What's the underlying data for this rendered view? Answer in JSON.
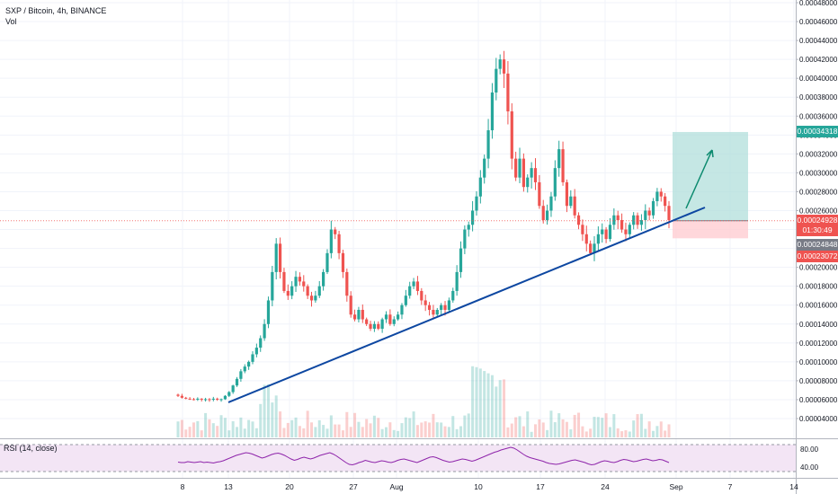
{
  "header": {
    "symbol_line": "SXP / Bitcoin, 4h, BINANCE",
    "volume_label": "Vol"
  },
  "rsi": {
    "label": "RSI (14, close)",
    "axis_labels": [
      "80.00",
      "40.00"
    ],
    "values": [
      51,
      50,
      50,
      52,
      51,
      50,
      51,
      52,
      50,
      51,
      50,
      49,
      51,
      52,
      54,
      57,
      60,
      63,
      66,
      68,
      70,
      72,
      71,
      69,
      66,
      63,
      60,
      62,
      65,
      68,
      70,
      71,
      69,
      66,
      62,
      58,
      55,
      57,
      60,
      62,
      60,
      58,
      60,
      63,
      66,
      68,
      70,
      72,
      69,
      65,
      60,
      55,
      50,
      46,
      45,
      47,
      50,
      52,
      55,
      53,
      51,
      50,
      52,
      54,
      53,
      51,
      50,
      52,
      55,
      57,
      58,
      56,
      54,
      52,
      50,
      53,
      56,
      59,
      62,
      63,
      61,
      58,
      55,
      53,
      51,
      52,
      54,
      56,
      58,
      57,
      55,
      53,
      55,
      58,
      61,
      64,
      67,
      70,
      73,
      75,
      78,
      80,
      82,
      84,
      82,
      78,
      73,
      68,
      64,
      61,
      59,
      57,
      55,
      53,
      50,
      48,
      47,
      46,
      47,
      49,
      51,
      53,
      55,
      56,
      54,
      52,
      50,
      47,
      45,
      46,
      49,
      52,
      54,
      53,
      51,
      50,
      52,
      55,
      57,
      56,
      54,
      52,
      53,
      55,
      57,
      58,
      56,
      54,
      55,
      57,
      56,
      53,
      50
    ]
  },
  "price_axis": {
    "ticks": [
      "0.00048000",
      "0.00046000",
      "0.00044000",
      "0.00042000",
      "0.00040000",
      "0.00038000",
      "0.00036000",
      "0.00034000",
      "0.00032000",
      "0.00030000",
      "0.00028000",
      "0.00026000",
      "0.00024000",
      "0.00022000",
      "0.00020000",
      "0.00018000",
      "0.00016000",
      "0.00014000",
      "0.00012000",
      "0.00010000",
      "0.00008000",
      "0.00006000",
      "0.00004000"
    ],
    "tags": [
      {
        "text": "0.00034318",
        "value": 0.00034318,
        "color": "#26a69a"
      },
      {
        "text": "0.00024928",
        "value": 0.00024928,
        "color": "#ef5350"
      },
      {
        "text": "01:30:49",
        "value": 0.000239,
        "color": "#ef5350"
      },
      {
        "text": "0.00024848",
        "value": 0.0002242,
        "color": "#787b86"
      },
      {
        "text": "0.00023072",
        "value": 0.000212,
        "color": "#ef5350"
      }
    ]
  },
  "time_axis": {
    "labels": [
      "8",
      "13",
      "20",
      "27",
      "Aug",
      "10",
      "17",
      "24",
      "Sep",
      "7",
      "14"
    ]
  },
  "chart_data": {
    "type": "candlestick",
    "title": "SXP / Bitcoin, 4h, BINANCE",
    "ylim": [
      3e-05,
      0.00049
    ],
    "x_labels": [
      "8",
      "13",
      "20",
      "27",
      "Aug",
      "10",
      "17",
      "24",
      "Sep",
      "7",
      "14"
    ],
    "close_series": [
      6.4e-05,
      6.2e-05,
      6.1e-05,
      6.05e-05,
      6e-05,
      6.1e-05,
      6e-05,
      6.05e-05,
      6e-05,
      6.1e-05,
      6e-05,
      6.05e-05,
      6.4e-05,
      6.8e-05,
      7.5e-05,
      8.2e-05,
      9e-05,
      9.5e-05,
      0.0001,
      0.000108,
      0.000115,
      0.000125,
      0.00014,
      0.000165,
      0.000195,
      0.000225,
      0.000195,
      0.000175,
      0.00017,
      0.00018,
      0.00019,
      0.000185,
      0.00018,
      0.00017,
      0.000165,
      0.00017,
      0.00018,
      0.000195,
      0.000215,
      0.00024,
      0.000235,
      0.000215,
      0.000195,
      0.00017,
      0.00015,
      0.000145,
      0.000155,
      0.000145,
      0.00014,
      0.000135,
      0.00014,
      0.000135,
      0.000145,
      0.00015,
      0.00014,
      0.000145,
      0.00015,
      0.00016,
      0.00017,
      0.00018,
      0.000185,
      0.000175,
      0.000165,
      0.00016,
      0.000155,
      0.00015,
      0.000155,
      0.00016,
      0.000155,
      0.000165,
      0.000175,
      0.000195,
      0.00022,
      0.00024,
      0.000245,
      0.00026,
      0.000275,
      0.000295,
      0.000315,
      0.000345,
      0.000385,
      0.00041,
      0.00042,
      0.000405,
      0.000365,
      0.000315,
      0.000295,
      0.000315,
      0.000285,
      0.000295,
      0.000305,
      0.00029,
      0.000265,
      0.00025,
      0.00026,
      0.000275,
      0.000305,
      0.000325,
      0.00029,
      0.000265,
      0.000275,
      0.000255,
      0.000245,
      0.000235,
      0.000225,
      0.000215,
      0.000225,
      0.000235,
      0.00024,
      0.00023,
      0.000245,
      0.000255,
      0.00025,
      0.00024,
      0.000235,
      0.000245,
      0.000255,
      0.000245,
      0.00025,
      0.00026,
      0.000255,
      0.00027,
      0.00028,
      0.000275,
      0.000265,
      0.00025
    ],
    "support_line": {
      "start": [
        "13",
        5.8e-05
      ],
      "end": [
        "Sep+",
        0.000264
      ]
    },
    "long_position": {
      "entry": 0.00024928,
      "target": 0.00034318,
      "stop": 0.00023072
    },
    "volume_note": "volume bars shown in lower portion of main pane"
  },
  "colors": {
    "up": "#26a69a",
    "down": "#ef5350",
    "trendline": "#0d47a1",
    "arrow": "#0b8a6e",
    "profit_zone": "#b2dfdb",
    "loss_zone": "#ffcdd2",
    "rsi_line": "#8e24aa",
    "rsi_band": "#f3e5f5"
  }
}
